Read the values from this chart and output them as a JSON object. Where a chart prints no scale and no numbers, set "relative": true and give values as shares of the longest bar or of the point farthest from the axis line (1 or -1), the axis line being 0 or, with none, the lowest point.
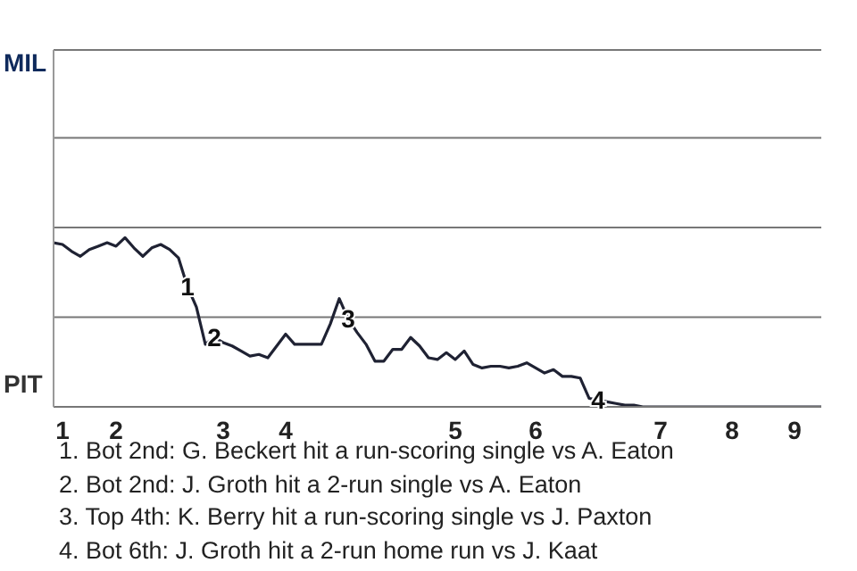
{
  "chart_data": {
    "type": "line",
    "relative": true,
    "ref_lines": [
      {
        "axis": "y",
        "value": 0.53,
        "color": "#777777"
      },
      {
        "axis": "y",
        "value": 1.06,
        "color": "#777777"
      },
      {
        "axis": "y",
        "value": 1.59,
        "color": "#777777"
      },
      {
        "axis": "y",
        "value": 2.11,
        "color": "#777777"
      }
    ],
    "categories": [
      null,
      "1",
      null,
      null,
      null,
      null,
      null,
      "2",
      null,
      null,
      null,
      null,
      null,
      null,
      null,
      null,
      null,
      null,
      null,
      "3",
      null,
      null,
      null,
      null,
      null,
      null,
      "4",
      null,
      null,
      null,
      null,
      null,
      null,
      null,
      null,
      null,
      null,
      null,
      null,
      null,
      null,
      null,
      null,
      null,
      null,
      "5",
      null,
      null,
      null,
      null,
      null,
      null,
      null,
      null,
      "6",
      null,
      null,
      null,
      null,
      null,
      null,
      null,
      null,
      null,
      null,
      null,
      null,
      null,
      "7",
      null,
      null,
      null,
      null,
      null,
      null,
      null,
      "8",
      null,
      null,
      null,
      null,
      null,
      null,
      "9",
      null,
      null,
      null
    ],
    "series": [
      {
        "color": "#1f2233",
        "values": [
          0.97,
          0.96,
          0.92,
          0.89,
          0.93,
          0.95,
          0.97,
          0.95,
          1,
          0.94,
          0.89,
          0.94,
          0.96,
          0.93,
          0.88,
          0.71,
          0.59,
          0.37,
          0.41,
          0.38,
          0.36,
          0.33,
          0.3,
          0.31,
          0.29,
          0.36,
          0.43,
          0.37,
          0.37,
          0.37,
          0.37,
          0.49,
          0.64,
          0.52,
          0.44,
          0.37,
          0.27,
          0.27,
          0.34,
          0.34,
          0.41,
          0.36,
          0.29,
          0.28,
          0.32,
          0.28,
          0.33,
          0.25,
          0.23,
          0.24,
          0.24,
          0.23,
          0.24,
          0.26,
          0.23,
          0.2,
          0.22,
          0.18,
          0.18,
          0.17,
          0.05,
          0.04,
          0.03,
          0.02,
          0.01,
          0.01,
          0,
          0,
          0,
          0,
          0,
          0,
          0,
          0,
          0,
          0,
          0,
          0,
          0,
          0,
          0,
          0,
          0,
          0,
          0,
          0,
          0
        ],
        "name": null
      }
    ],
    "annotations": [
      "MIL",
      "PIT",
      {
        "text": "1",
        "y": 0.71
      },
      {
        "text": "2",
        "y": 0.41
      },
      {
        "text": "3",
        "y": 0.52
      },
      {
        "text": "4",
        "y": 0.04
      },
      "1. Bot 2nd: G. Beckert hit a run-scoring single vs A. Eaton",
      "2. Bot 2nd: J. Groth hit a 2-run single vs A. Eaton",
      "3. Top 4th: K. Berry hit a run-scoring single vs J. Paxton",
      "4. Bot 6th: J. Groth hit a 2-run home run vs J. Kaat"
    ]
  }
}
